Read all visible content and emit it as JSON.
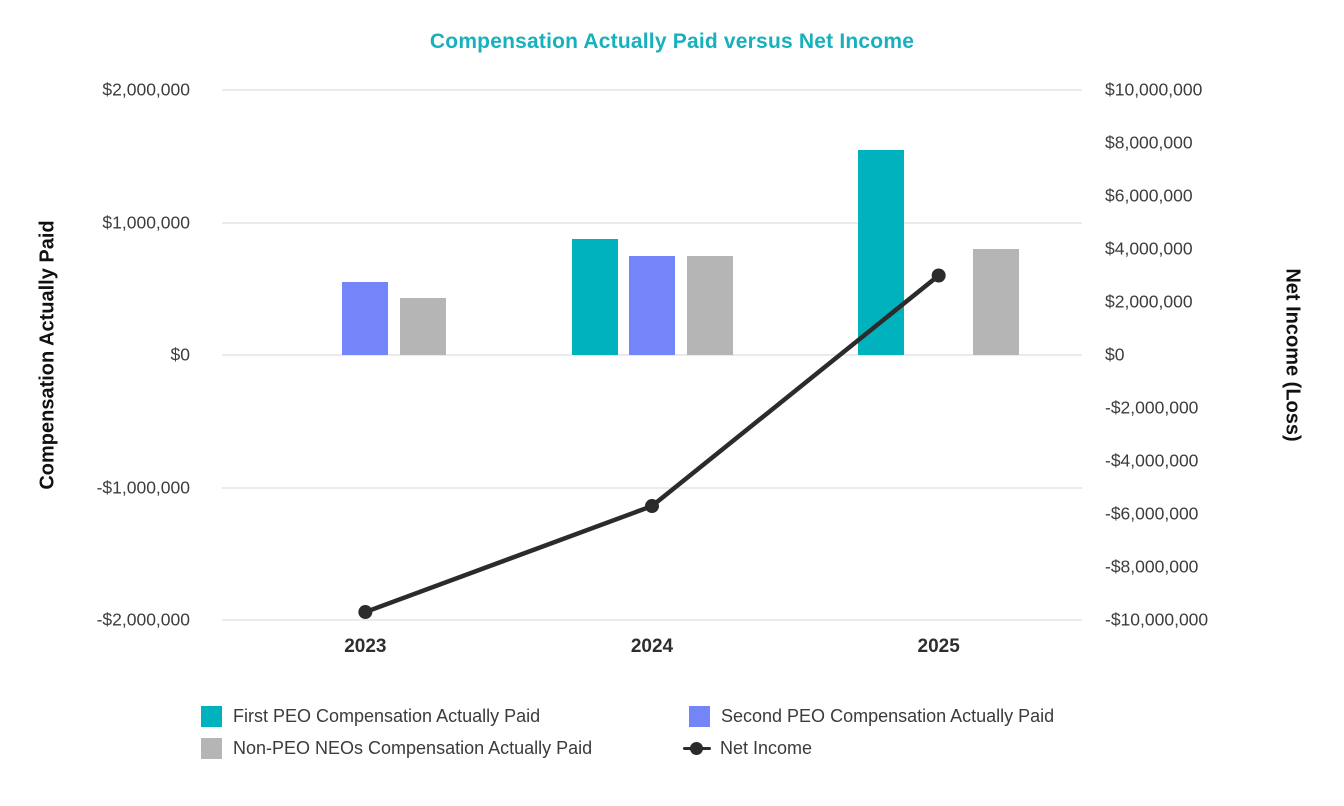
{
  "chart_data": {
    "type": "bar",
    "subtype": "combo-bar-line-dual-axis",
    "title": "Compensation Actually Paid versus Net Income",
    "title_color": "#17b0bd",
    "categories": [
      "2023",
      "2024",
      "2025"
    ],
    "bar_series": [
      {
        "name": "First PEO Compensation Actually Paid",
        "color": "#00b2bd",
        "axis": "left",
        "values": [
          null,
          875000,
          1550000
        ]
      },
      {
        "name": "Second PEO Compensation Actually Paid",
        "color": "#7485fa",
        "axis": "left",
        "values": [
          550000,
          750000,
          null
        ]
      },
      {
        "name": "Non-PEO NEOs Compensation Actually Paid",
        "color": "#b5b5b5",
        "axis": "left",
        "values": [
          430000,
          750000,
          800000
        ]
      }
    ],
    "line_series": {
      "name": "Net Income",
      "color": "#2b2b2b",
      "axis": "right",
      "values": [
        -9700000,
        -5700000,
        3000000
      ]
    },
    "left_axis": {
      "label": "Compensation Actually Paid",
      "min": -2000000,
      "max": 2000000,
      "tick_step": 1000000,
      "tick_labels": [
        "$2,000,000",
        "$1,000,000",
        "$0",
        "-$1,000,000",
        "-$2,000,000"
      ],
      "tick_values": [
        2000000,
        1000000,
        0,
        -1000000,
        -2000000
      ]
    },
    "right_axis": {
      "label": "Net Income (Loss)",
      "min": -10000000,
      "max": 10000000,
      "tick_step": 2000000,
      "tick_labels": [
        "$10,000,000",
        "$8,000,000",
        "$6,000,000",
        "$4,000,000",
        "$2,000,000",
        "$0",
        "-$2,000,000",
        "-$4,000,000",
        "-$6,000,000",
        "-$8,000,000",
        "-$10,000,000"
      ],
      "tick_values": [
        10000000,
        8000000,
        6000000,
        4000000,
        2000000,
        0,
        -2000000,
        -4000000,
        -6000000,
        -8000000,
        -10000000
      ]
    },
    "grid": "horizontal gridlines at left-axis ticks only",
    "legend_position": "bottom",
    "legend": {
      "items": [
        {
          "label": "First PEO Compensation Actually Paid",
          "marker": "square",
          "color": "#00b2bd"
        },
        {
          "label": "Non-PEO NEOs Compensation Actually Paid",
          "marker": "square",
          "color": "#b5b5b5"
        },
        {
          "label": "Second PEO Compensation Actually Paid",
          "marker": "square",
          "color": "#7485fa"
        },
        {
          "label": "Net Income",
          "marker": "line-dot",
          "color": "#2b2b2b"
        }
      ]
    }
  }
}
